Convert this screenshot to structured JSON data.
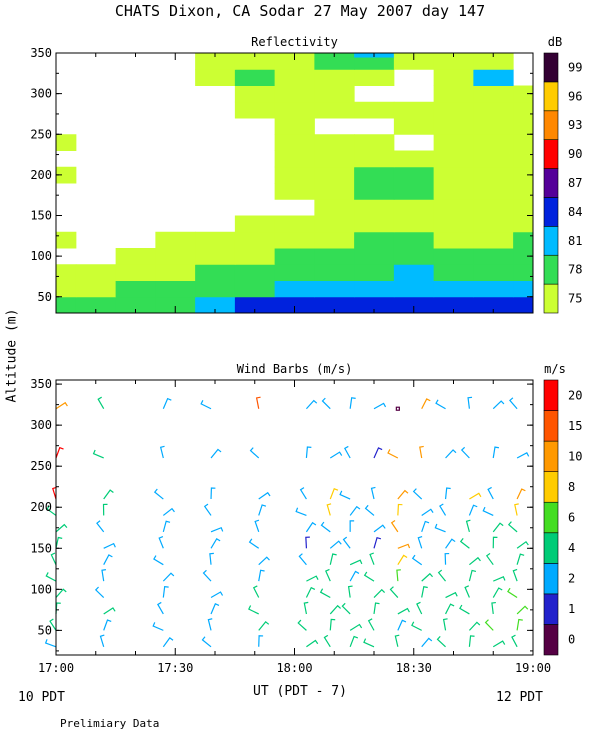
{
  "title": "CHATS Dixon, CA  Sodar  27 May 2007  day 147",
  "footer": {
    "left": "10 PDT",
    "right": "12 PDT",
    "note": "Prelimiary Data",
    "xlabel": "UT  (PDT - 7)",
    "ylabel": "Altitude (m)"
  },
  "chart_data": [
    {
      "type": "heatmap",
      "title": "Reflectivity",
      "colorbar_label": "dB",
      "x_ticks": [
        "17:00",
        "17:30",
        "18:00",
        "18:30",
        "19:00"
      ],
      "x_range_minutes": [
        0,
        120
      ],
      "y_ticks": [
        50,
        100,
        150,
        200,
        250,
        300,
        350
      ],
      "ylim": [
        30,
        350
      ],
      "colorbar": {
        "levels": [
          75,
          78,
          81,
          84,
          87,
          90,
          93,
          96,
          99
        ],
        "colors": [
          "#ccff33",
          "#33dd55",
          "#00bbff",
          "#0022dd",
          "#550099",
          "#ff0000",
          "#ff8800",
          "#ffcc00",
          "#330033"
        ]
      },
      "times": [
        0,
        10,
        20,
        30,
        40,
        50,
        60,
        70,
        80,
        90,
        100,
        110,
        120
      ],
      "altitudes": [
        40,
        60,
        80,
        100,
        120,
        140,
        160,
        180,
        200,
        220,
        240,
        260,
        280,
        300,
        320,
        340,
        350
      ],
      "values": [
        [
          78,
          78,
          79,
          79,
          82,
          85,
          85,
          84,
          84,
          84,
          85,
          84,
          84
        ],
        [
          76,
          77,
          78,
          78,
          79,
          80,
          82,
          82,
          82,
          83,
          83,
          82,
          82
        ],
        [
          75,
          75,
          76,
          76,
          78,
          79,
          79,
          79,
          80,
          82,
          80,
          80,
          80
        ],
        [
          74,
          74,
          75,
          75,
          76,
          77,
          78,
          78,
          78,
          79,
          79,
          79,
          79
        ],
        [
          75,
          74,
          74,
          75,
          76,
          77,
          75,
          77,
          79,
          78,
          77,
          77,
          78
        ],
        [
          74,
          74,
          74,
          74,
          74,
          75,
          77,
          77,
          76,
          75,
          76,
          76,
          77
        ],
        [
          74,
          74,
          74,
          74,
          74,
          74,
          74,
          76,
          76,
          77,
          77,
          77,
          77
        ],
        [
          73,
          73,
          74,
          74,
          73,
          74,
          75,
          76,
          78,
          78,
          77,
          76,
          77
        ],
        [
          75,
          74,
          74,
          74,
          74,
          74,
          75,
          76,
          78,
          78,
          77,
          76,
          77
        ],
        [
          74,
          73,
          73,
          73,
          73,
          74,
          75,
          76,
          77,
          77,
          76,
          76,
          76
        ],
        [
          75,
          73,
          73,
          73,
          73,
          74,
          75,
          76,
          75,
          74,
          76,
          76,
          75
        ],
        [
          73,
          73,
          73,
          73,
          73,
          74,
          75,
          74,
          74,
          76,
          76,
          75,
          75
        ],
        [
          73,
          73,
          73,
          73,
          73,
          75,
          76,
          76,
          75,
          75,
          75,
          77,
          75
        ],
        [
          73,
          73,
          73,
          73,
          74,
          76,
          75,
          76,
          74,
          73,
          75,
          77,
          75
        ],
        [
          73,
          73,
          73,
          73,
          76,
          80,
          76,
          77,
          76,
          73,
          75,
          81,
          74
        ],
        [
          73,
          73,
          73,
          73,
          76,
          77,
          77,
          78,
          79,
          76,
          75,
          76,
          74
        ],
        [
          73,
          73,
          73,
          73,
          76,
          77,
          77,
          78,
          81,
          76,
          75,
          76,
          74
        ]
      ]
    },
    {
      "type": "scatter",
      "title": "Wind Barbs (m/s)",
      "colorbar_label": "m/s",
      "x_ticks": [
        "17:00",
        "17:30",
        "18:00",
        "18:30",
        "19:00"
      ],
      "x_range_minutes": [
        0,
        120
      ],
      "y_ticks": [
        50,
        100,
        150,
        200,
        250,
        300,
        350
      ],
      "ylim": [
        20,
        355
      ],
      "colorbar": {
        "levels": [
          0,
          1,
          2,
          4,
          6,
          8,
          10,
          15,
          20
        ],
        "colors": [
          "#550044",
          "#2222cc",
          "#00aaff",
          "#00cc77",
          "#44dd22",
          "#ffcc00",
          "#ff9900",
          "#ff5500",
          "#ff0000"
        ]
      },
      "times": [
        0,
        12,
        27,
        39,
        51,
        63,
        69,
        74,
        80,
        86,
        92,
        98,
        104,
        110,
        116
      ],
      "altitudes": [
        30,
        50,
        70,
        90,
        110,
        130,
        150,
        170,
        190,
        210,
        260,
        320
      ],
      "speeds": [
        [
          3,
          3,
          2,
          3,
          3,
          4,
          4,
          4,
          5,
          5,
          3,
          4,
          5,
          5,
          5
        ],
        [
          4,
          2,
          3,
          3,
          4,
          4,
          4,
          5,
          5,
          3,
          4,
          4,
          5,
          6,
          6
        ],
        [
          4,
          4,
          2,
          2,
          4,
          5,
          5,
          4,
          5,
          4,
          4,
          4,
          5,
          5,
          6
        ],
        [
          4,
          2,
          2,
          2,
          5,
          5,
          5,
          4,
          5,
          4,
          4,
          4,
          4,
          4,
          6
        ],
        [
          5,
          3,
          3,
          2,
          3,
          4,
          5,
          3,
          5,
          6,
          5,
          4,
          4,
          5,
          5
        ],
        [
          5,
          3,
          3,
          2,
          2,
          3,
          4,
          4,
          4,
          9,
          3,
          3,
          5,
          4,
          5
        ],
        [
          5,
          3,
          3,
          2,
          3,
          1,
          3,
          3,
          1,
          10,
          3,
          3,
          5,
          4,
          5
        ],
        [
          5,
          3,
          3,
          2,
          3,
          3,
          3,
          3,
          3,
          10,
          2,
          3,
          4,
          4,
          4
        ],
        [
          5,
          5,
          3,
          2,
          3,
          3,
          8,
          3,
          3,
          9,
          3,
          3,
          3,
          2,
          8
        ],
        [
          22,
          4,
          3,
          2,
          3,
          3,
          9,
          3,
          3,
          10,
          3,
          3,
          8,
          3,
          10
        ],
        [
          22,
          4,
          3,
          2,
          3,
          3,
          3,
          2,
          1,
          10,
          10,
          3,
          3,
          3,
          3
        ],
        [
          12,
          4,
          3,
          2,
          18,
          3,
          3,
          3,
          3,
          0,
          12,
          3,
          3,
          3,
          3
        ]
      ]
    }
  ]
}
